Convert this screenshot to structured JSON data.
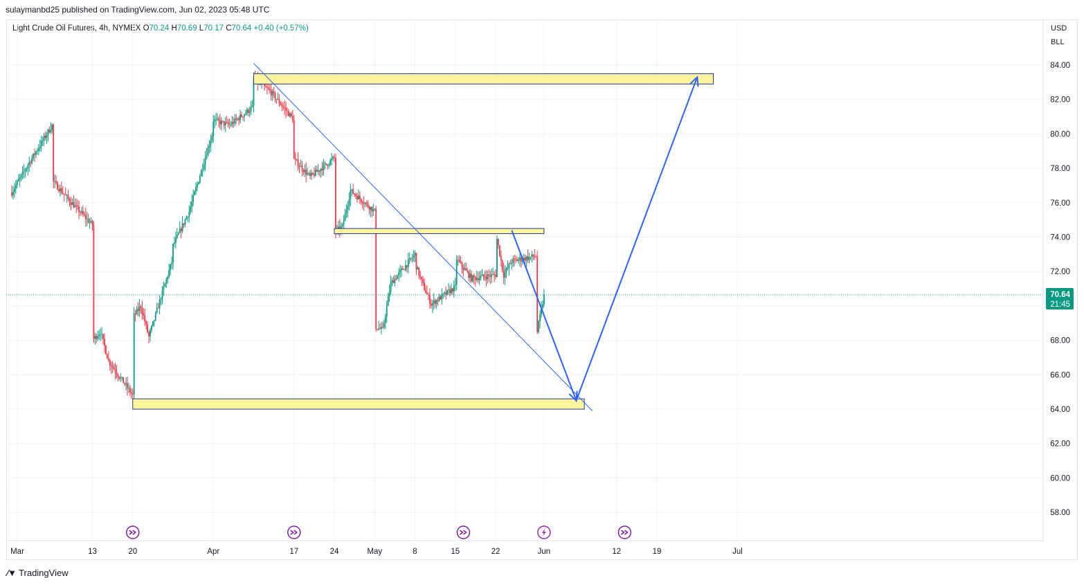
{
  "header": {
    "published": "sulaymanbd25 published on TradingView.com, Jun 02, 2023 05:48 UTC"
  },
  "legend": {
    "symbol": "Light Crude Oil Futures, 4h, NYMEX",
    "o_label": "O",
    "o_value": "70.24",
    "h_label": "H",
    "h_value": "70.69",
    "l_label": "L",
    "l_value": "70.17",
    "c_label": "C",
    "c_value": "70.64",
    "change": "+0.40 (+0.57%)"
  },
  "scale": {
    "currency": "USD",
    "unit": "BLL"
  },
  "last_price": {
    "value": "70.64",
    "countdown": "21:45"
  },
  "footer": {
    "brand": "TradingView"
  },
  "colors": {
    "up": "#089981",
    "down": "#f23645",
    "zone_fill": "#fff59d",
    "zone_border": "#1e3a8a",
    "drawing": "#2962ff"
  },
  "chart_data": {
    "type": "candlestick",
    "timeframe": "4h",
    "yticks": [
      "84.00",
      "82.00",
      "80.00",
      "78.00",
      "76.00",
      "74.00",
      "72.00",
      "70.00",
      "68.00",
      "66.00",
      "64.00",
      "62.00",
      "60.00",
      "58.00"
    ],
    "ylim": [
      56.8,
      85.2
    ],
    "xticks": [
      "Mar",
      "13",
      "20",
      "Apr",
      "17",
      "24",
      "May",
      "8",
      "15",
      "22",
      "Jun",
      "12",
      "19",
      "Jul"
    ],
    "path": [
      [
        "2023-03-01",
        76.6
      ],
      [
        "2023-03-03",
        78.2
      ],
      [
        "2023-03-06",
        80.5
      ],
      [
        "2023-03-07",
        80.8
      ],
      [
        "2023-03-08",
        77.3
      ],
      [
        "2023-03-10",
        76.2
      ],
      [
        "2023-03-13",
        74.7
      ],
      [
        "2023-03-14",
        71.5
      ],
      [
        "2023-03-15",
        68.0
      ],
      [
        "2023-03-16",
        68.5
      ],
      [
        "2023-03-17",
        66.8
      ],
      [
        "2023-03-20",
        64.8
      ],
      [
        "2023-03-21",
        69.3
      ],
      [
        "2023-03-23",
        70.0
      ],
      [
        "2023-03-24",
        68.2
      ],
      [
        "2023-03-27",
        72.8
      ],
      [
        "2023-03-29",
        73.5
      ],
      [
        "2023-03-31",
        75.5
      ],
      [
        "2023-04-03",
        80.2
      ],
      [
        "2023-04-05",
        80.8
      ],
      [
        "2023-04-07",
        80.5
      ],
      [
        "2023-04-11",
        81.6
      ],
      [
        "2023-04-12",
        83.2
      ],
      [
        "2023-04-13",
        82.8
      ],
      [
        "2023-04-14",
        82.5
      ],
      [
        "2023-04-17",
        80.8
      ],
      [
        "2023-04-19",
        78.5
      ],
      [
        "2023-04-21",
        77.5
      ],
      [
        "2023-04-24",
        78.6
      ],
      [
        "2023-04-25",
        77.0
      ],
      [
        "2023-04-26",
        74.3
      ],
      [
        "2023-04-27",
        74.6
      ],
      [
        "2023-04-28",
        76.7
      ],
      [
        "2023-05-01",
        75.5
      ],
      [
        "2023-05-02",
        71.5
      ],
      [
        "2023-05-03",
        68.8
      ],
      [
        "2023-05-04",
        68.6
      ],
      [
        "2023-05-05",
        71.3
      ],
      [
        "2023-05-08",
        73.0
      ],
      [
        "2023-05-10",
        72.5
      ],
      [
        "2023-05-11",
        71.2
      ],
      [
        "2023-05-12",
        70.1
      ],
      [
        "2023-05-15",
        71.1
      ],
      [
        "2023-05-16",
        70.9
      ],
      [
        "2023-05-17",
        72.8
      ],
      [
        "2023-05-19",
        71.6
      ],
      [
        "2023-05-22",
        71.8
      ],
      [
        "2023-05-24",
        74.3
      ],
      [
        "2023-05-25",
        71.8
      ],
      [
        "2023-05-26",
        72.6
      ],
      [
        "2023-05-29",
        72.9
      ],
      [
        "2023-05-30",
        69.4
      ],
      [
        "2023-05-31",
        68.1
      ],
      [
        "2023-06-01",
        70.6
      ]
    ],
    "last": {
      "open": 70.24,
      "high": 70.69,
      "low": 70.17,
      "close": 70.64,
      "change": 0.4,
      "change_pct": 0.57
    },
    "zones": [
      {
        "from": "2023-04-12",
        "to": "2023-06-30",
        "low": 82.9,
        "high": 83.5
      },
      {
        "from": "2023-04-26",
        "to": "2023-06-01",
        "low": 74.2,
        "high": 74.5
      },
      {
        "from": "2023-03-20",
        "to": "2023-06-08",
        "low": 64.0,
        "high": 64.6
      }
    ],
    "trendline": {
      "from": [
        "2023-04-11",
        84.1
      ],
      "to": [
        "2023-06-09",
        63.9
      ]
    },
    "projection": [
      [
        "2023-05-26",
        74.4
      ],
      [
        "2023-06-07",
        64.5
      ],
      [
        "2023-06-28",
        83.3
      ]
    ],
    "event_markers": [
      "2023-03-20",
      "2023-04-17",
      "2023-05-18",
      "2023-06-01",
      "2023-06-15"
    ],
    "grid": true
  }
}
